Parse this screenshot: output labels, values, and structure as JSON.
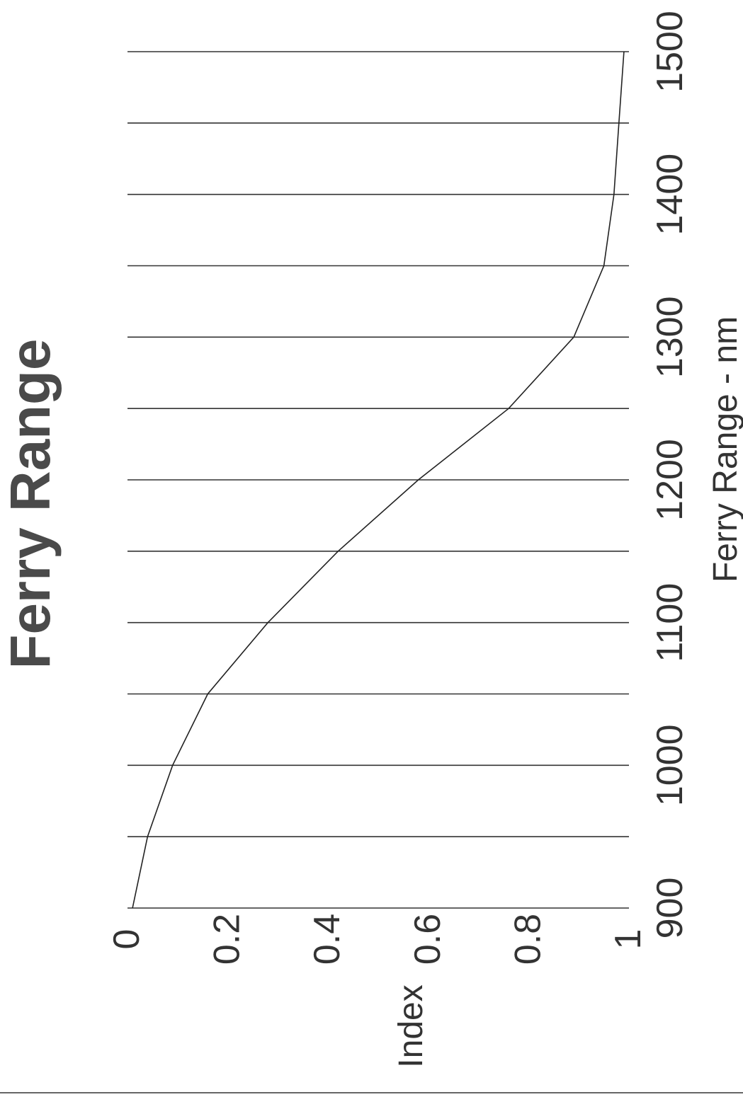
{
  "chart_data": {
    "type": "line",
    "title": "Ferry Range",
    "xlabel": "Ferry Range - nm",
    "ylabel": "Index",
    "xlim": [
      900,
      1500
    ],
    "ylim": [
      0,
      1
    ],
    "x_ticks": [
      "900",
      "1000",
      "1100",
      "1200",
      "1300",
      "1400",
      "1500"
    ],
    "y_ticks": [
      "0",
      "0.2",
      "0.4",
      "0.6",
      "0.8",
      "1"
    ],
    "grid": "horizontal-in-rotated-view",
    "orientation": "rotated-90-ccw",
    "series": [
      {
        "x": [
          900,
          950,
          1000,
          1050,
          1100,
          1150,
          1200,
          1250,
          1300,
          1350,
          1400,
          1450,
          1500
        ],
        "y": [
          0.01,
          0.04,
          0.09,
          0.16,
          0.28,
          0.42,
          0.58,
          0.76,
          0.89,
          0.95,
          0.97,
          0.98,
          0.99
        ]
      }
    ]
  }
}
